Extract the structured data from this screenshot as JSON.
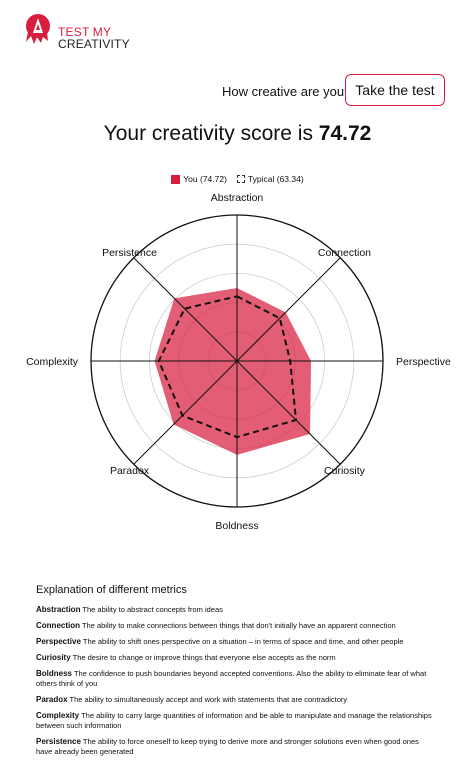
{
  "brand": {
    "line1": "TEST MY",
    "line2": "CREATIVITY",
    "accent": "#d81e3f"
  },
  "header": {
    "question": "How creative are you?",
    "cta_label": "Take the test"
  },
  "score": {
    "prefix": "Your creativity score is",
    "value": "74.72"
  },
  "chart_data": {
    "type": "radar",
    "axes": [
      "Abstraction",
      "Connection",
      "Perspective",
      "Curiosity",
      "Boldness",
      "Paradox",
      "Complexity",
      "Persistence"
    ],
    "series": [
      {
        "name": "You (74.72)",
        "color": "#d81e3f",
        "style": "filled",
        "values": [
          70,
          66,
          71,
          99,
          90,
          86,
          79,
          85
        ]
      },
      {
        "name": "Typical (63.34)",
        "color": "#111111",
        "style": "dashed",
        "values": [
          62,
          58,
          51,
          80,
          73,
          74,
          75,
          71
        ]
      }
    ],
    "range": [
      0,
      140
    ],
    "rings": 5,
    "grid": true,
    "legend_position": "top"
  },
  "explanation": {
    "title": "Explanation of different metrics",
    "items": [
      {
        "name": "Abstraction",
        "text": "The ability to abstract concepts from ideas"
      },
      {
        "name": "Connection",
        "text": "The ability to make connections between things that don't initially have an apparent connection"
      },
      {
        "name": "Perspective",
        "text": "The ability to shift ones perspective on a situation – in terms of space and time, and other people"
      },
      {
        "name": "Curiosity",
        "text": "The desire to change or improve things that everyone else accepts as the norm"
      },
      {
        "name": "Boldness",
        "text": "The confidence to push boundaries beyond accepted conventions. Also the ability to eliminate fear of what others think of you"
      },
      {
        "name": "Paradox",
        "text": "The ability to simultaneously accept and work with statements that are contradictory"
      },
      {
        "name": "Complexity",
        "text": "The ability to carry large quantities of information and be able to manipulate and manage the relationships between such information"
      },
      {
        "name": "Persistence",
        "text": "The ability to force oneself to keep trying to derive more and stronger solutions even when good ones have already been generated"
      }
    ]
  }
}
